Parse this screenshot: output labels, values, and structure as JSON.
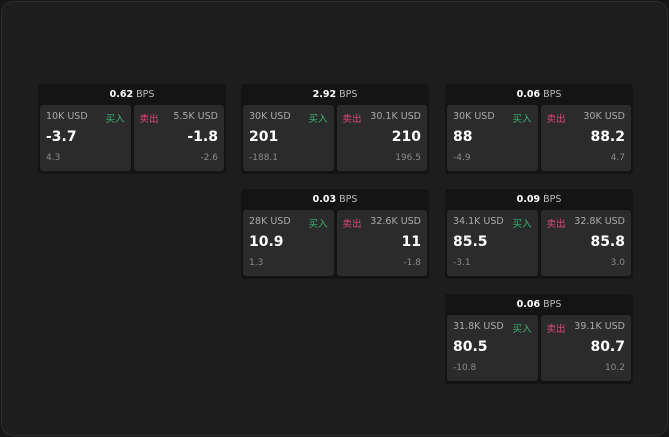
{
  "buy_label": "买入",
  "sell_label": "卖出",
  "unit": "BPS",
  "colors": {
    "buy": "#3cb371",
    "sell": "#e0457b"
  },
  "cards": [
    {
      "spread": "0.62",
      "bid_size": "10K USD",
      "bid": "-3.7",
      "bid_change": "4.3",
      "ask_size": "5.5K USD",
      "ask": "-1.8",
      "ask_change": "-2.6"
    },
    {
      "spread": "2.92",
      "bid_size": "30K USD",
      "bid": "201",
      "bid_change": "-188.1",
      "ask_size": "30.1K USD",
      "ask": "210",
      "ask_change": "196.5"
    },
    {
      "spread": "0.06",
      "bid_size": "30K USD",
      "bid": "88",
      "bid_change": "-4.9",
      "ask_size": "30K USD",
      "ask": "88.2",
      "ask_change": "4.7"
    },
    {
      "spread": "0.03",
      "bid_size": "28K USD",
      "bid": "10.9",
      "bid_change": "1.3",
      "ask_size": "32.6K USD",
      "ask": "11",
      "ask_change": "-1.8"
    },
    {
      "spread": "0.09",
      "bid_size": "34.1K USD",
      "bid": "85.5",
      "bid_change": "-3.1",
      "ask_size": "32.8K USD",
      "ask": "85.8",
      "ask_change": "3.0"
    },
    {
      "spread": "0.06",
      "bid_size": "31.8K USD",
      "bid": "80.5",
      "bid_change": "-10.8",
      "ask_size": "39.1K USD",
      "ask": "80.7",
      "ask_change": "10.2"
    }
  ]
}
